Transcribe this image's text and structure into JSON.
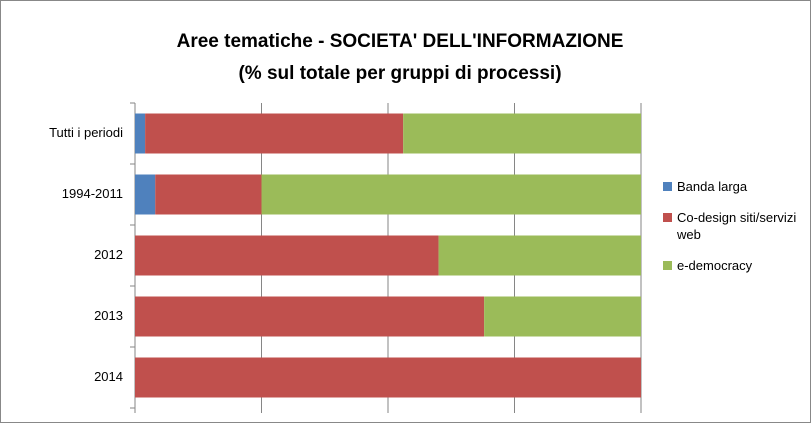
{
  "chart_data": {
    "type": "stacked_barh",
    "title": [
      "Aree tematiche - SOCIETA' DELL'INFORMAZIONE",
      "(% sul totale per gruppi di processi)"
    ],
    "categories": [
      "Tutti i periodi",
      "1994-2011",
      "2012",
      "2013",
      "2014"
    ],
    "series": [
      {
        "name": "Banda larga",
        "color": "#4f81bd",
        "values": [
          2,
          4,
          0,
          0,
          0
        ]
      },
      {
        "name": "Co-design siti/servizi web",
        "color": "#c0504d",
        "values": [
          51,
          21,
          60,
          69,
          100
        ]
      },
      {
        "name": "e-democracy",
        "color": "#9bbb59",
        "values": [
          47,
          75,
          40,
          31,
          0
        ]
      }
    ],
    "xlim": [
      0,
      100
    ],
    "xticks": [
      0,
      25,
      50,
      75,
      100
    ],
    "grid": true,
    "legend": "right"
  }
}
